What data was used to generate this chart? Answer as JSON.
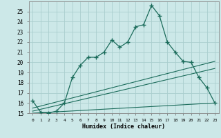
{
  "xlabel": "Humidex (Indice chaleur)",
  "bg_color": "#cce8e8",
  "grid_color": "#aacece",
  "line_color": "#1a6b5a",
  "xlim": [
    -0.5,
    23.5
  ],
  "ylim": [
    15,
    26
  ],
  "yticks": [
    15,
    16,
    17,
    18,
    19,
    20,
    21,
    22,
    23,
    24,
    25
  ],
  "xticks": [
    0,
    1,
    2,
    3,
    4,
    5,
    6,
    7,
    8,
    9,
    10,
    11,
    12,
    13,
    14,
    15,
    16,
    17,
    18,
    19,
    20,
    21,
    22,
    23
  ],
  "main_x": [
    0,
    1,
    2,
    3,
    4,
    5,
    6,
    7,
    8,
    9,
    10,
    11,
    12,
    13,
    14,
    15,
    16,
    17,
    18,
    19,
    20,
    21,
    22,
    23
  ],
  "main_y": [
    16.2,
    15.1,
    15.0,
    15.2,
    16.0,
    18.5,
    19.7,
    20.5,
    20.5,
    21.0,
    22.2,
    21.5,
    22.0,
    23.5,
    23.7,
    25.6,
    24.6,
    22.0,
    21.0,
    20.1,
    20.0,
    18.5,
    17.5,
    16.0
  ],
  "line2_x": [
    0,
    23
  ],
  "line2_y": [
    15.5,
    20.1
  ],
  "line3_x": [
    0,
    23
  ],
  "line3_y": [
    15.2,
    19.4
  ],
  "line4_x": [
    0,
    23
  ],
  "line4_y": [
    15.0,
    16.0
  ]
}
